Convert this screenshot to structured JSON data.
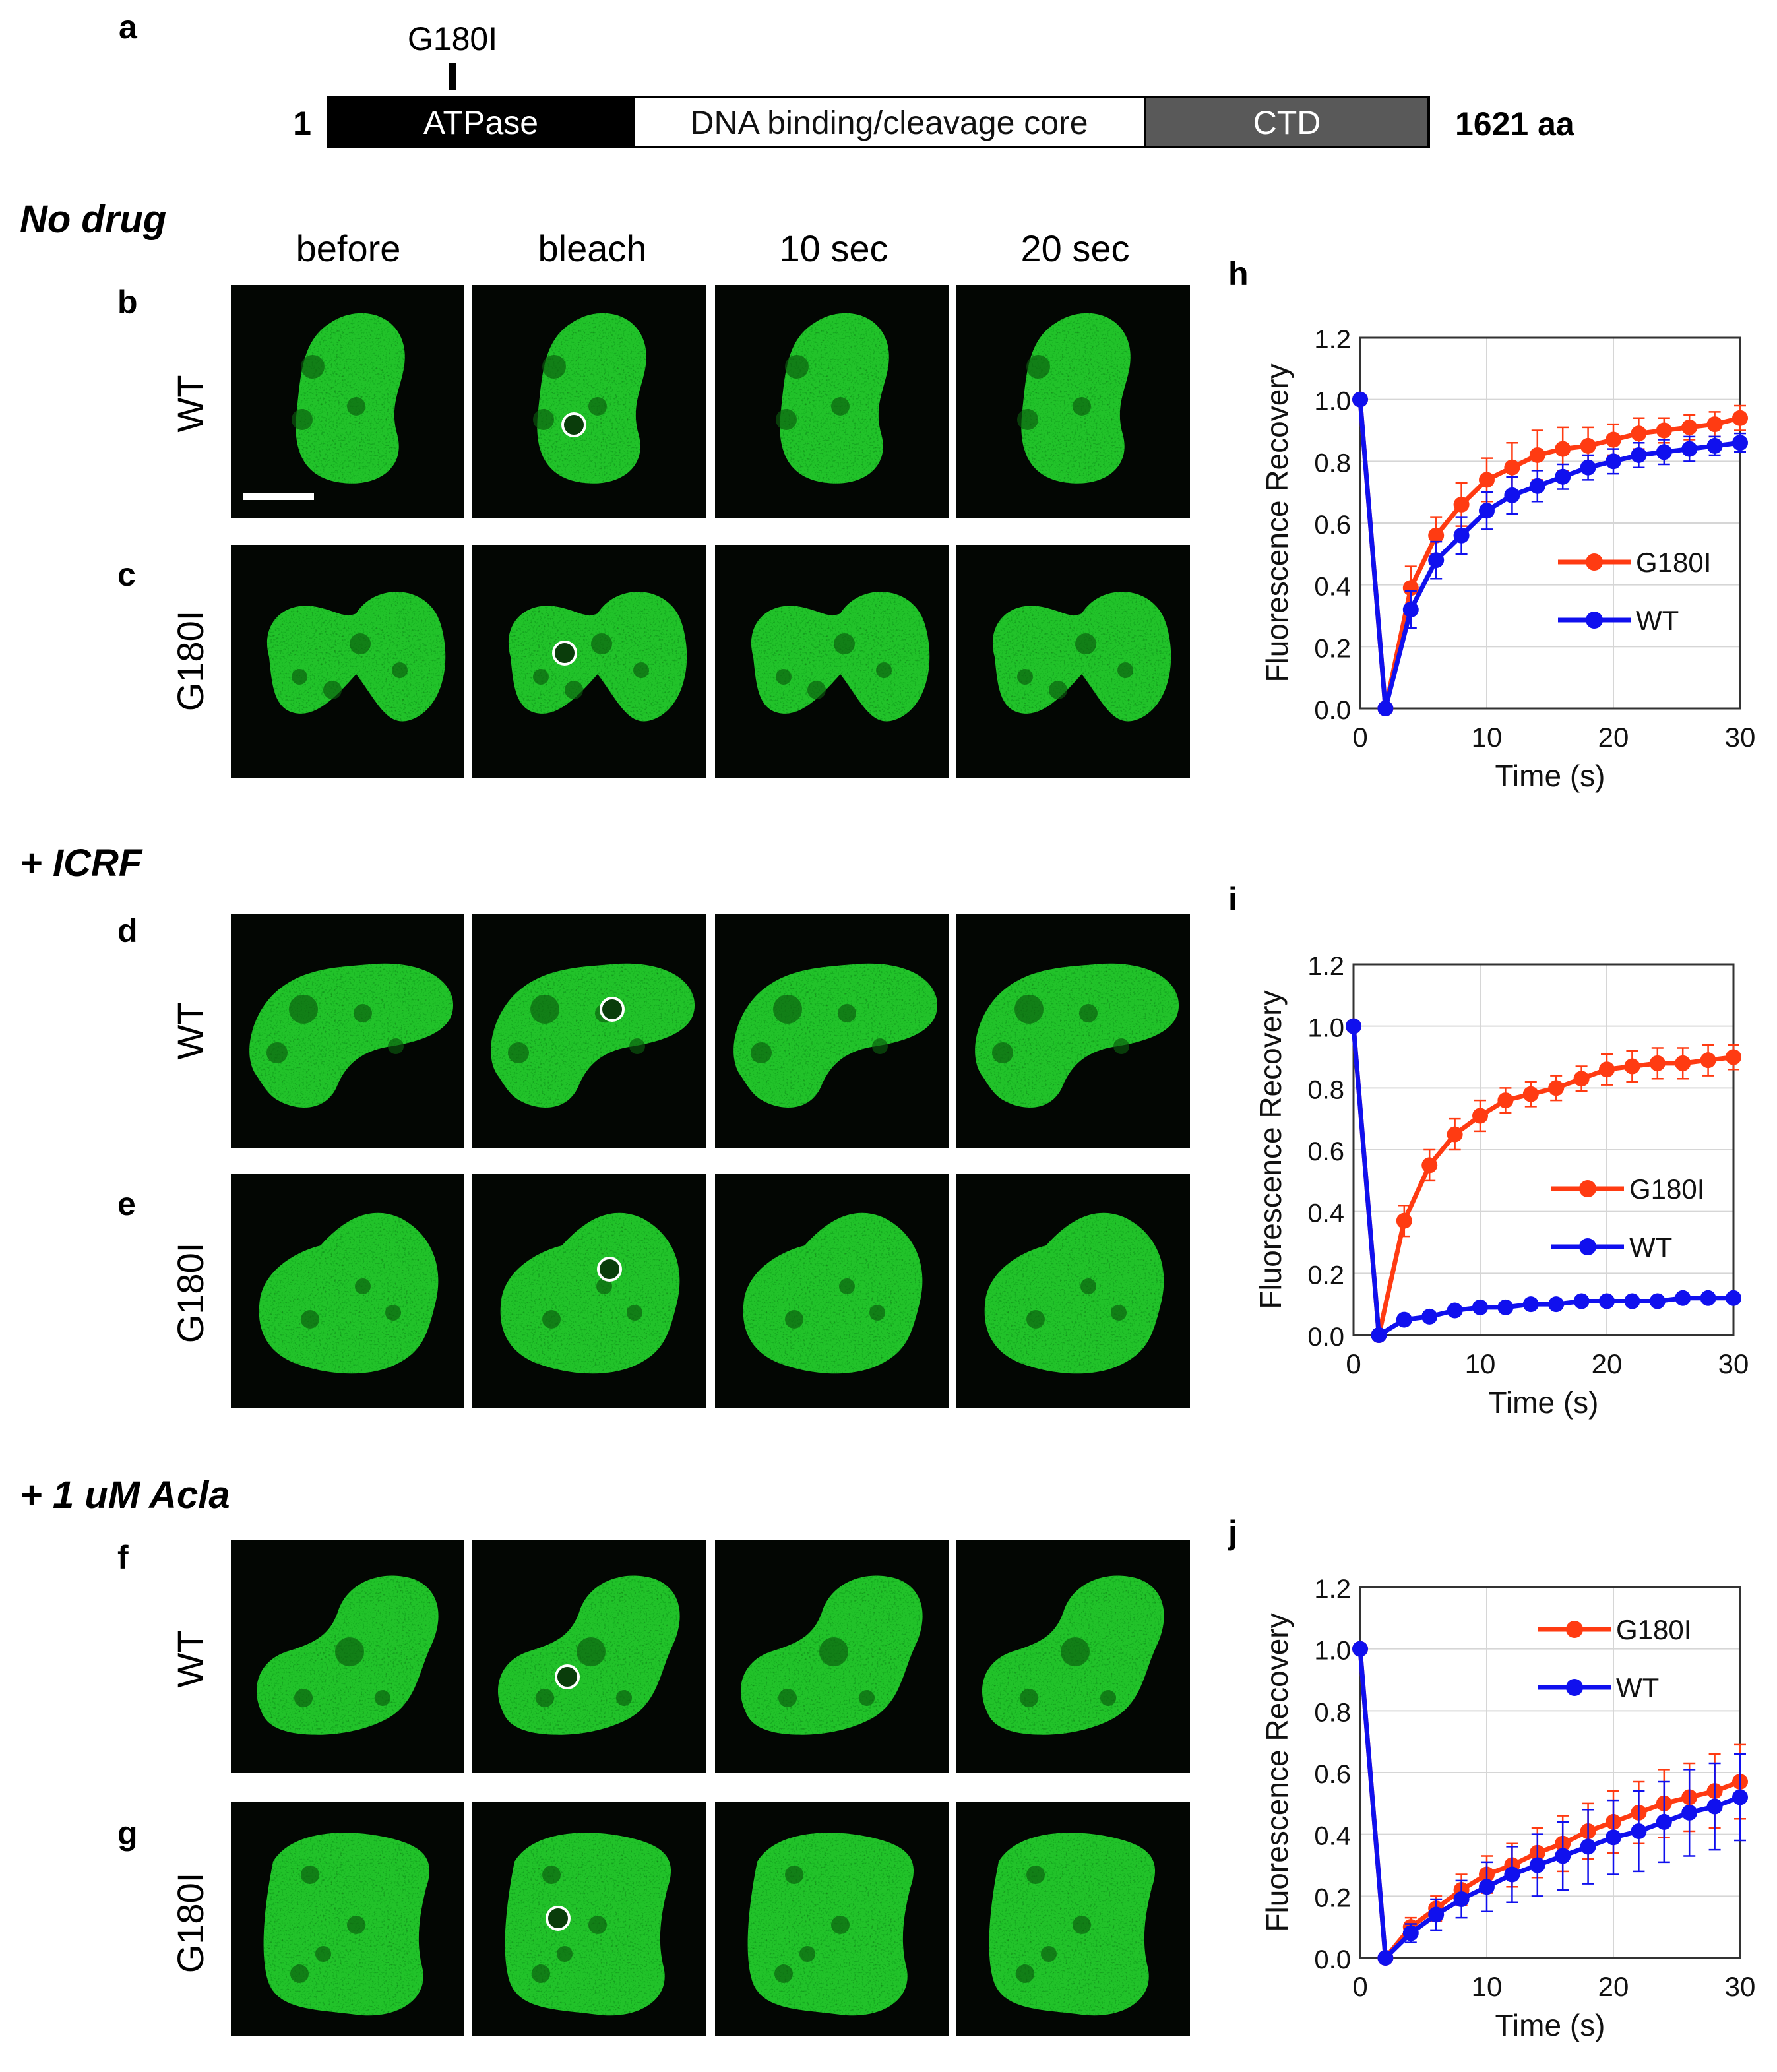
{
  "panel_labels": {
    "a": "a",
    "b": "b",
    "c": "c",
    "d": "d",
    "e": "e",
    "f": "f",
    "g": "g",
    "h": "h",
    "i": "i",
    "j": "j"
  },
  "domain_map": {
    "mutation": "G180I",
    "start": "1",
    "end": "1621 aa",
    "domains": [
      {
        "name": "ATPase",
        "fill": "#000000",
        "text_color": "#ffffff"
      },
      {
        "name": "DNA binding/cleavage core",
        "fill": "#ffffff",
        "text_color": "#111111"
      },
      {
        "name": "CTD",
        "fill": "#595959",
        "text_color": "#ffffff"
      }
    ]
  },
  "conditions": [
    "No drug",
    "+ ICRF",
    "+ 1 uM Acla"
  ],
  "column_headers": [
    "before",
    "bleach",
    "10 sec",
    "20 sec"
  ],
  "row_labels": [
    "WT",
    "G180I",
    "WT",
    "G180I",
    "WT",
    "G180I"
  ],
  "colors": {
    "g180i": "#ff3b12",
    "wt": "#1010ee",
    "nucleus": "#22c22a",
    "background": "#030603"
  },
  "chart_data": [
    {
      "type": "line",
      "panel": "h",
      "xlabel": "Time (s)",
      "ylabel": "Fluorescence Recovery",
      "xlim": [
        0,
        30
      ],
      "ylim": [
        0,
        1.2
      ],
      "xticks": [
        "0",
        "10",
        "20",
        "30"
      ],
      "yticks": [
        "0.0",
        "0.2",
        "0.4",
        "0.6",
        "0.8",
        "1.0",
        "1.2"
      ],
      "grid": true,
      "legend_position": "center-right",
      "x": [
        0,
        2,
        4,
        6,
        8,
        10,
        12,
        14,
        16,
        18,
        20,
        22,
        24,
        26,
        28,
        30
      ],
      "series": [
        {
          "name": "G180I",
          "color": "#ff3b12",
          "values": [
            1.0,
            0.0,
            0.39,
            0.56,
            0.66,
            0.74,
            0.78,
            0.82,
            0.84,
            0.85,
            0.87,
            0.89,
            0.9,
            0.91,
            0.92,
            0.94
          ],
          "errors": [
            0,
            0,
            0.07,
            0.06,
            0.07,
            0.07,
            0.08,
            0.08,
            0.07,
            0.06,
            0.05,
            0.05,
            0.04,
            0.04,
            0.04,
            0.04
          ]
        },
        {
          "name": "WT",
          "color": "#1010ee",
          "values": [
            1.0,
            0.0,
            0.32,
            0.48,
            0.56,
            0.64,
            0.69,
            0.72,
            0.75,
            0.78,
            0.8,
            0.82,
            0.83,
            0.84,
            0.85,
            0.86
          ],
          "errors": [
            0,
            0,
            0.06,
            0.06,
            0.06,
            0.06,
            0.06,
            0.05,
            0.04,
            0.04,
            0.04,
            0.04,
            0.04,
            0.04,
            0.03,
            0.03
          ]
        }
      ]
    },
    {
      "type": "line",
      "panel": "i",
      "xlabel": "Time (s)",
      "ylabel": "Fluorescence Recovery",
      "xlim": [
        0,
        30
      ],
      "ylim": [
        0,
        1.2
      ],
      "xticks": [
        "0",
        "10",
        "20",
        "30"
      ],
      "yticks": [
        "0.0",
        "0.2",
        "0.4",
        "0.6",
        "0.8",
        "1.0",
        "1.2"
      ],
      "grid": true,
      "legend_position": "center-right",
      "x": [
        0,
        2,
        4,
        6,
        8,
        10,
        12,
        14,
        16,
        18,
        20,
        22,
        24,
        26,
        28,
        30
      ],
      "series": [
        {
          "name": "G180I",
          "color": "#ff3b12",
          "values": [
            1.0,
            0.0,
            0.37,
            0.55,
            0.65,
            0.71,
            0.76,
            0.78,
            0.8,
            0.83,
            0.86,
            0.87,
            0.88,
            0.88,
            0.89,
            0.9
          ],
          "errors": [
            0,
            0,
            0.05,
            0.05,
            0.05,
            0.05,
            0.04,
            0.04,
            0.04,
            0.04,
            0.05,
            0.05,
            0.05,
            0.05,
            0.05,
            0.04
          ]
        },
        {
          "name": "WT",
          "color": "#1010ee",
          "values": [
            1.0,
            0.0,
            0.05,
            0.06,
            0.08,
            0.09,
            0.09,
            0.1,
            0.1,
            0.11,
            0.11,
            0.11,
            0.11,
            0.12,
            0.12,
            0.12
          ],
          "errors": [
            0,
            0,
            0.01,
            0.01,
            0.01,
            0.01,
            0.01,
            0.01,
            0.01,
            0.01,
            0.01,
            0.01,
            0.01,
            0.01,
            0.01,
            0.01
          ]
        }
      ]
    },
    {
      "type": "line",
      "panel": "j",
      "xlabel": "Time (s)",
      "ylabel": "Fluorescence Recovery",
      "xlim": [
        0,
        30
      ],
      "ylim": [
        0,
        1.2
      ],
      "xticks": [
        "0",
        "10",
        "20",
        "30"
      ],
      "yticks": [
        "0.0",
        "0.2",
        "0.4",
        "0.6",
        "0.8",
        "1.0",
        "1.2"
      ],
      "grid": true,
      "legend_position": "top-right",
      "x": [
        0,
        2,
        4,
        6,
        8,
        10,
        12,
        14,
        16,
        18,
        20,
        22,
        24,
        26,
        28,
        30
      ],
      "series": [
        {
          "name": "G180I",
          "color": "#ff3b12",
          "values": [
            1.0,
            0.0,
            0.1,
            0.16,
            0.22,
            0.27,
            0.3,
            0.34,
            0.37,
            0.41,
            0.44,
            0.47,
            0.5,
            0.52,
            0.54,
            0.57
          ],
          "errors": [
            0,
            0,
            0.03,
            0.04,
            0.05,
            0.06,
            0.07,
            0.08,
            0.09,
            0.09,
            0.1,
            0.1,
            0.11,
            0.11,
            0.12,
            0.12
          ]
        },
        {
          "name": "WT",
          "color": "#1010ee",
          "values": [
            1.0,
            0.0,
            0.08,
            0.14,
            0.19,
            0.23,
            0.27,
            0.3,
            0.33,
            0.36,
            0.39,
            0.41,
            0.44,
            0.47,
            0.49,
            0.52
          ],
          "errors": [
            0,
            0,
            0.03,
            0.05,
            0.06,
            0.08,
            0.09,
            0.1,
            0.11,
            0.12,
            0.12,
            0.13,
            0.13,
            0.14,
            0.14,
            0.14
          ]
        }
      ]
    }
  ]
}
